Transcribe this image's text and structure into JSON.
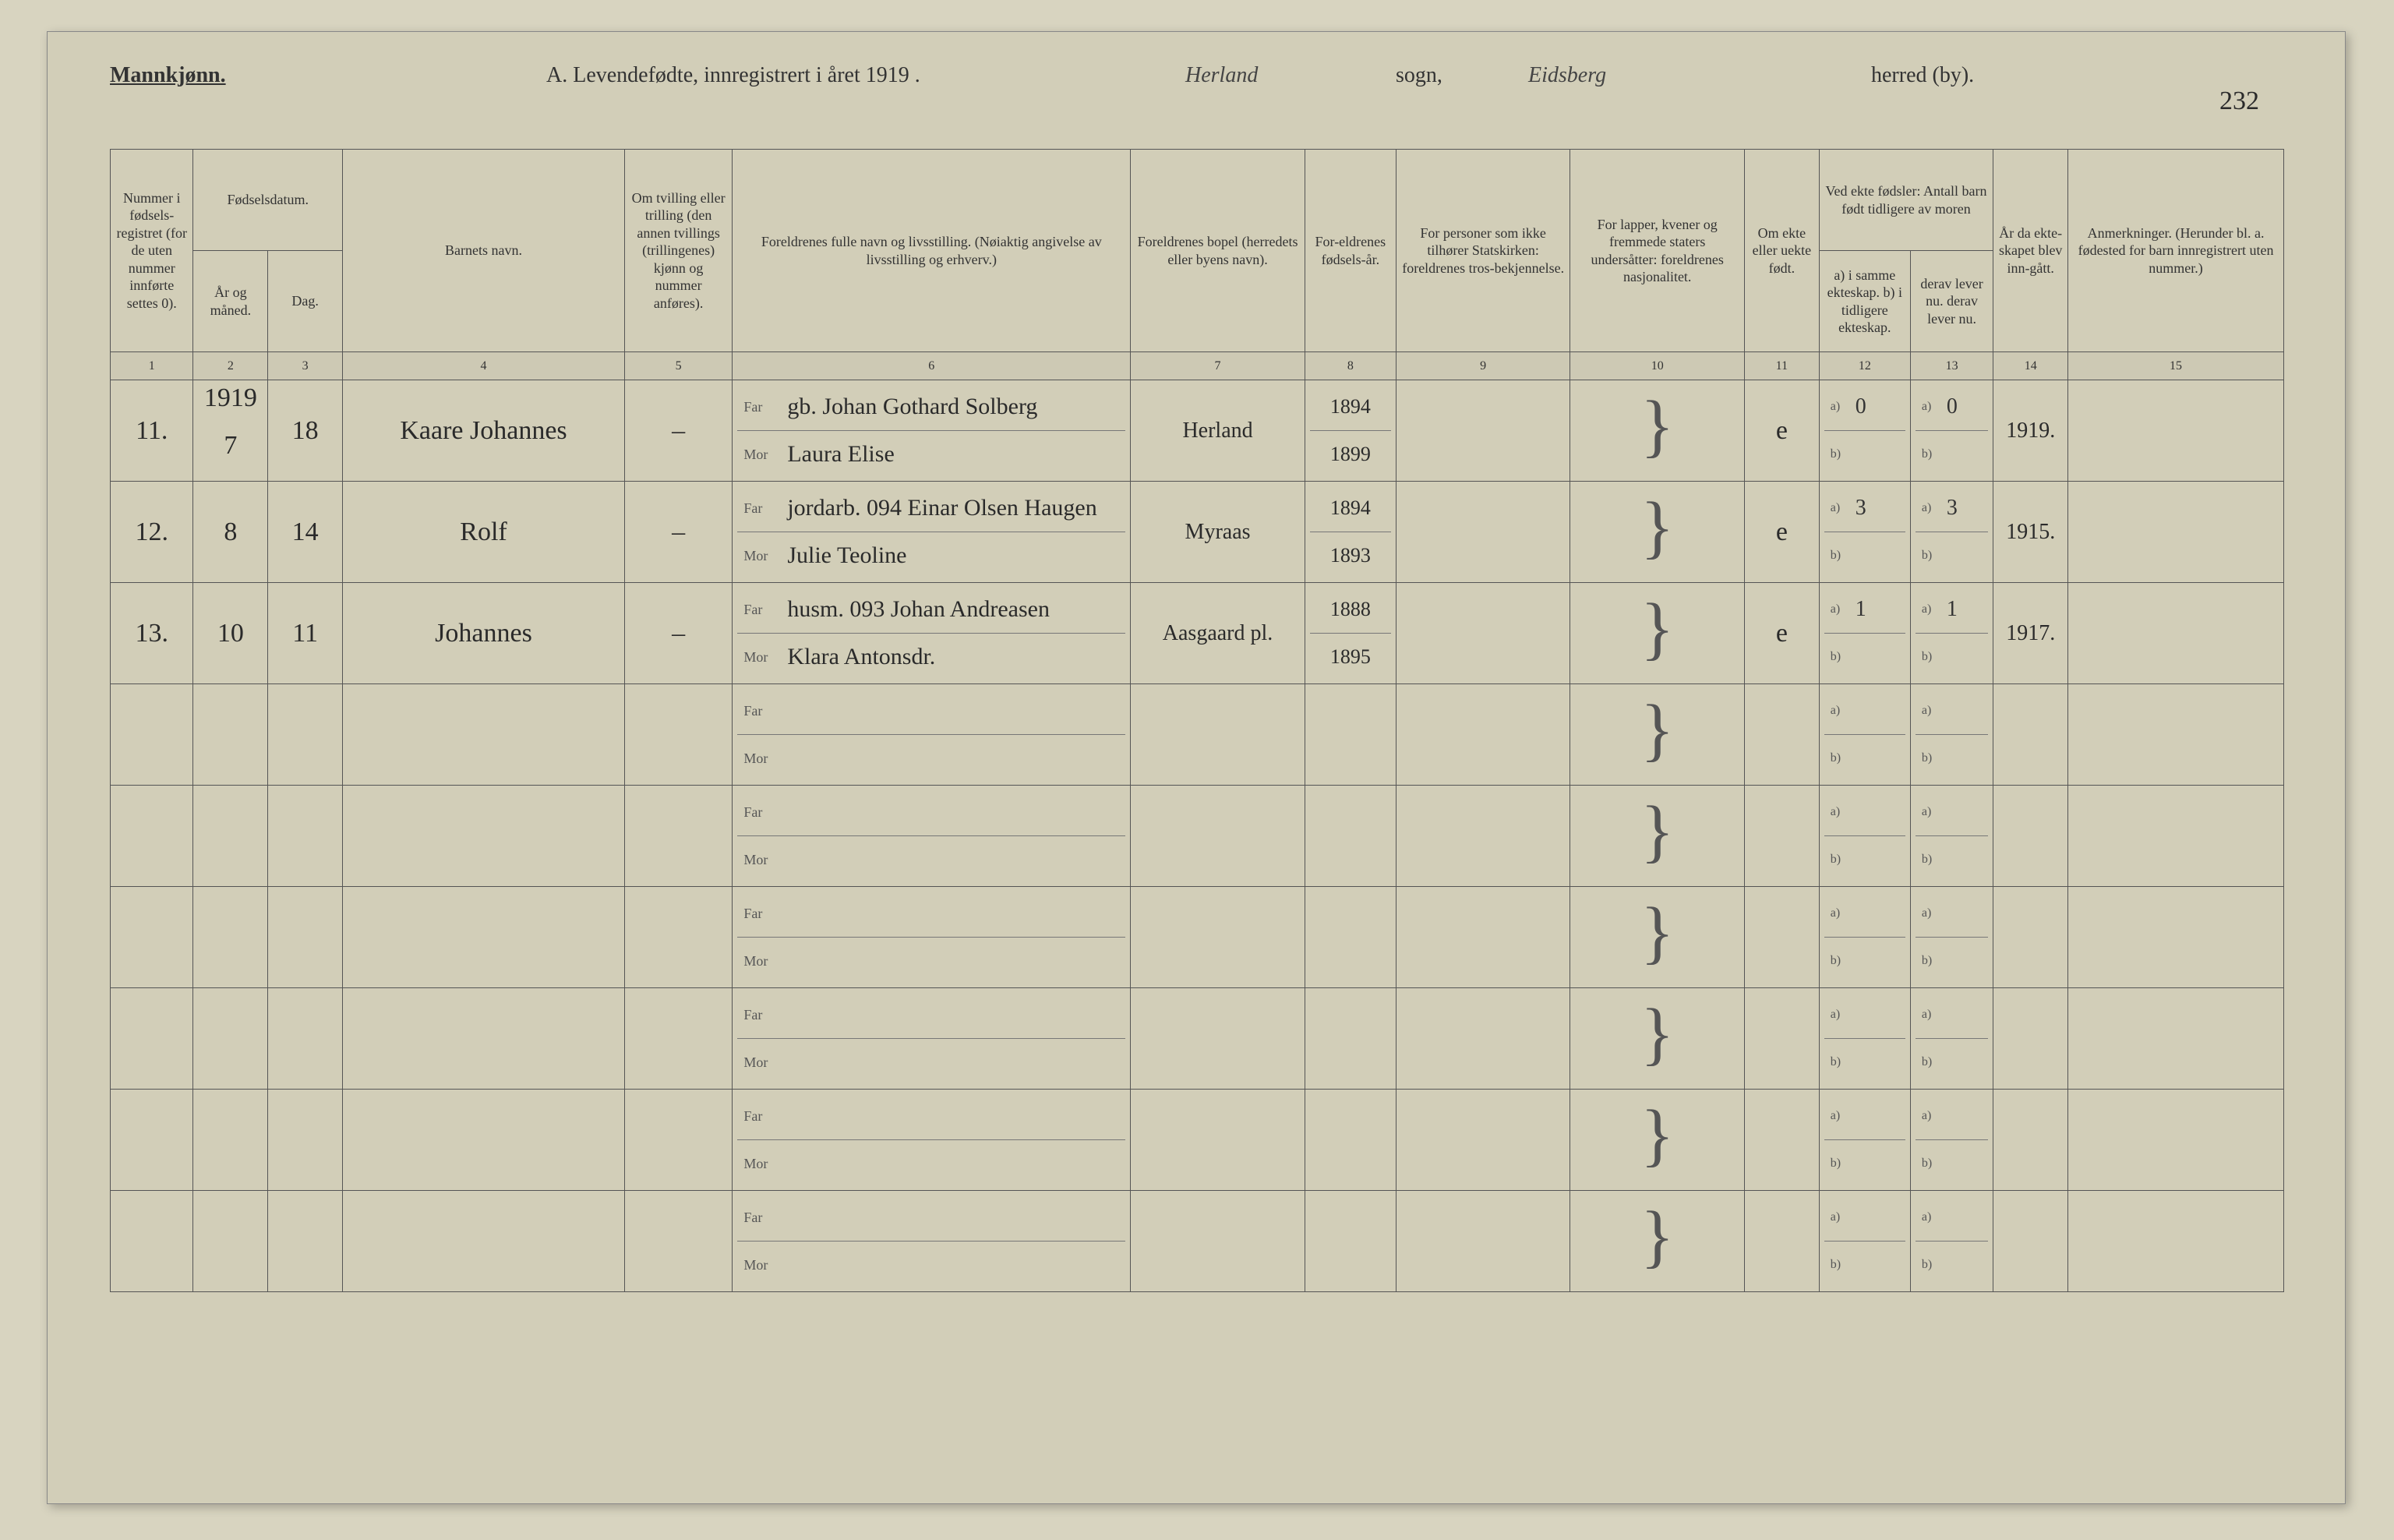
{
  "header": {
    "gender": "Mannkjønn.",
    "title_prefix": "A.  Levendefødte, innregistrert i året 191",
    "year_suffix": "9 .",
    "parish_handwritten": "Herland",
    "sogn_label": "sogn,",
    "district_handwritten": "Eidsberg",
    "herred_label": "herred (by).",
    "page_number": "232"
  },
  "columns": {
    "h1": "Nummer i fødsels-registret (for de uten nummer innførte settes 0).",
    "h2_group": "Fødselsdatum.",
    "h2": "År og måned.",
    "h3": "Dag.",
    "h4": "Barnets navn.",
    "h5": "Om tvilling eller trilling (den annen tvillings (trillingenes) kjønn og nummer anføres).",
    "h6": "Foreldrenes fulle navn og livsstilling. (Nøiaktig angivelse av livsstilling og erhverv.)",
    "h7": "Foreldrenes bopel (herredets eller byens navn).",
    "h8": "For-eldrenes fødsels-år.",
    "h9": "For personer som ikke tilhører Statskirken: foreldrenes tros-bekjennelse.",
    "h10": "For lapper, kvener og fremmede staters undersåtter: foreldrenes nasjonalitet.",
    "h11": "Om ekte eller uekte født.",
    "h12_group": "Ved ekte fødsler: Antall barn født tidligere av moren",
    "h12": "a) i samme ekteskap.  b) i tidligere ekteskap.",
    "h13": "derav lever nu.  derav lever nu.",
    "h14": "År da ekte-skapet blev inn-gått.",
    "h15": "Anmerkninger. (Herunder bl. a. fødested for barn innregistrert uten nummer.)"
  },
  "colnums": [
    "1",
    "2",
    "3",
    "4",
    "5",
    "6",
    "7",
    "8",
    "9",
    "10",
    "11",
    "12",
    "13",
    "14",
    "15"
  ],
  "year_header_cell": "1919",
  "entries": [
    {
      "num": "11.",
      "month": "7",
      "day": "18",
      "name": "Kaare Johannes",
      "twin": "–",
      "far": "gb. Johan Gothard Solberg",
      "mor": "Laura Elise",
      "residence": "Herland",
      "far_year": "1894",
      "mor_year": "1899",
      "legit": "e",
      "a_count": "0",
      "a_live": "0",
      "marriage_year": "1919."
    },
    {
      "num": "12.",
      "month": "8",
      "day": "14",
      "name": "Rolf",
      "twin": "–",
      "far_note": "jordarb. 094",
      "far": "Einar Olsen Haugen",
      "mor": "Julie Teoline",
      "residence": "Myraas",
      "far_year": "1894",
      "mor_year": "1893",
      "legit": "e",
      "a_count": "3",
      "a_live": "3",
      "marriage_year": "1915."
    },
    {
      "num": "13.",
      "month": "10",
      "day": "11",
      "name": "Johannes",
      "twin": "–",
      "far_note": "husm. 093",
      "far": "Johan Andreasen",
      "mor": "Klara Antonsdr.",
      "residence": "Aasgaard pl.",
      "far_year": "1888",
      "mor_year": "1895",
      "legit": "e",
      "a_count": "1",
      "a_live": "1",
      "marriage_year": "1917."
    }
  ],
  "labels": {
    "far": "Far",
    "mor": "Mor",
    "a": "a)",
    "b": "b)"
  },
  "colors": {
    "page_bg": "#d2ceb8",
    "outer_bg": "#d8d4c0",
    "line": "#555",
    "text": "#333",
    "handwriting": "#2a2a2a"
  },
  "empty_rows": 6
}
